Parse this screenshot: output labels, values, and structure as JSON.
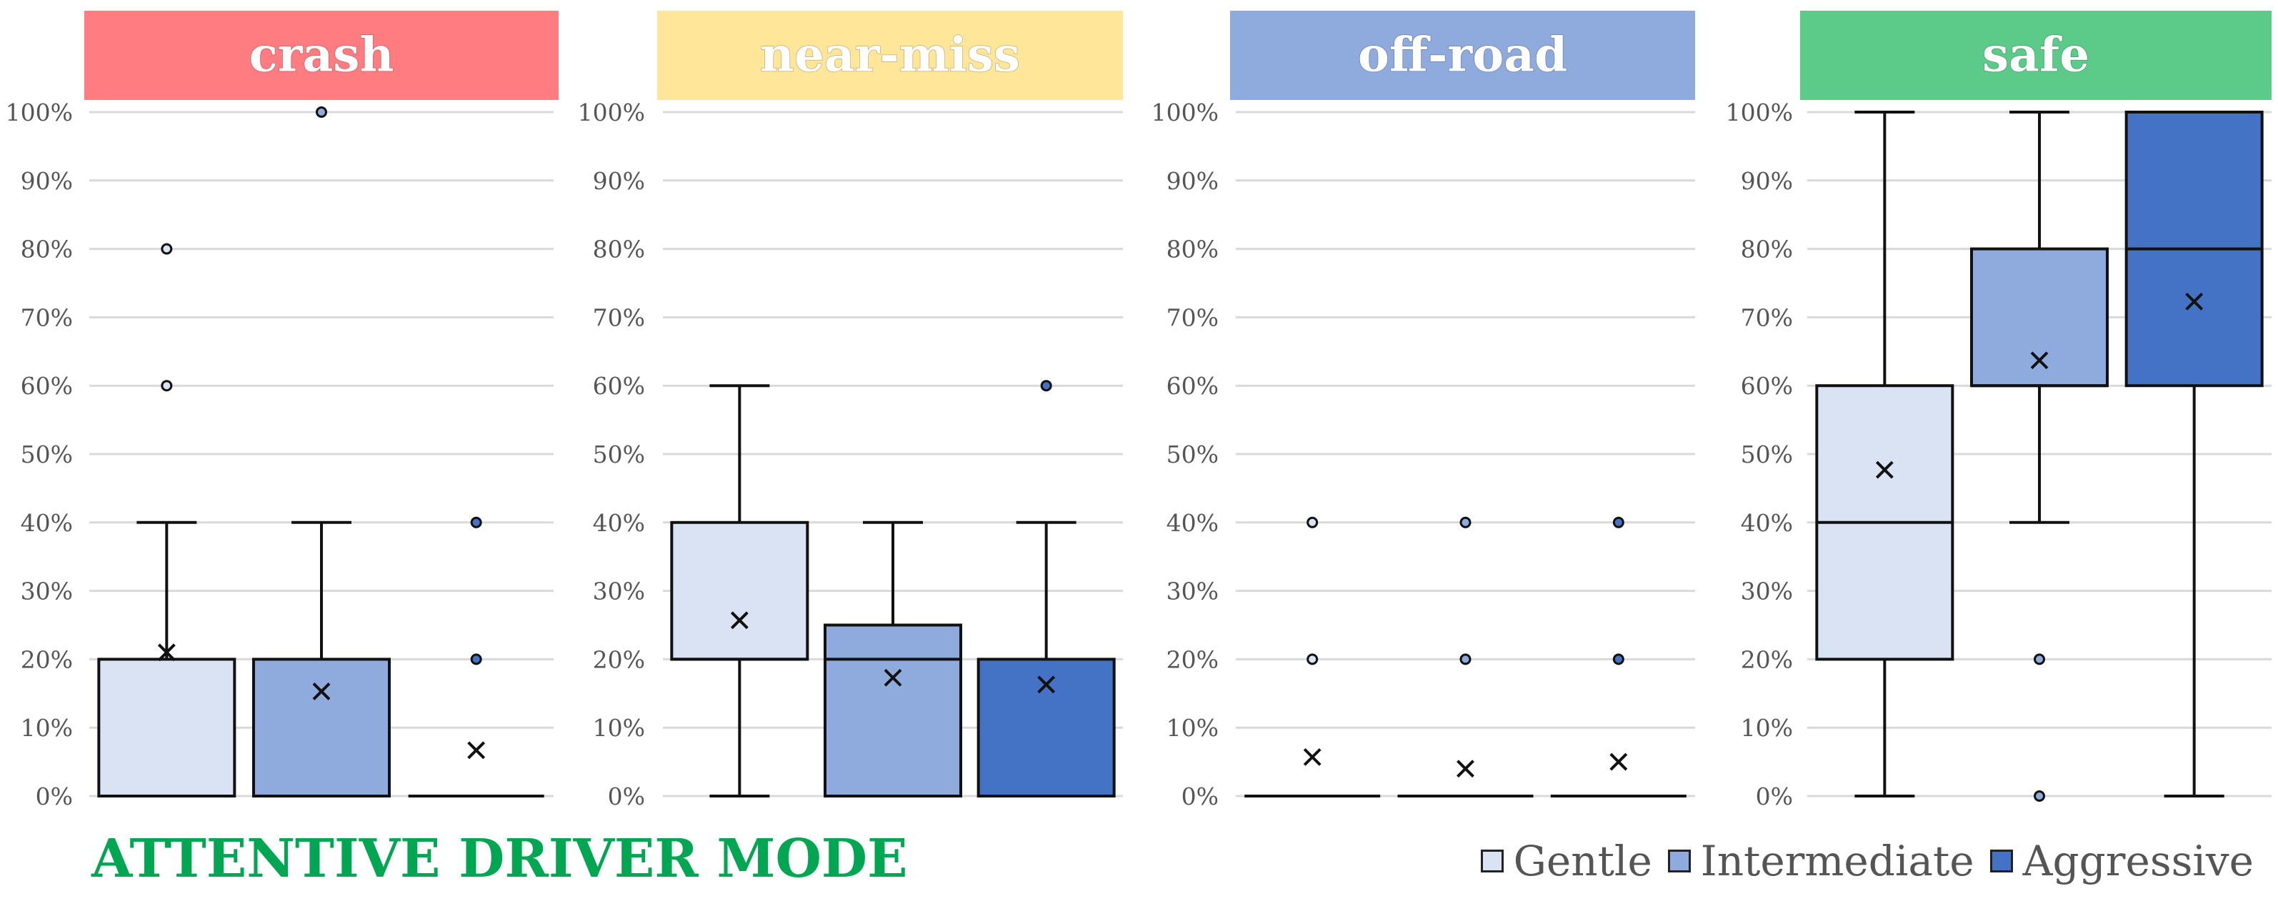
{
  "footer_title": "ATTENTIVE DRIVER MODE",
  "colors": {
    "Gentle": "#dae3f3",
    "Intermediate": "#8faadc",
    "Aggressive": "#4472c4",
    "crash": "#ff7c80",
    "near-miss": "#ffe699",
    "off-road": "#8faadc",
    "safe": "#5ccb8a"
  },
  "legend": [
    "Gentle",
    "Intermediate",
    "Aggressive"
  ],
  "chart_data": [
    {
      "type": "boxplot",
      "title": "crash",
      "ylim": [
        0,
        1
      ],
      "yticks": [
        "0%",
        "10%",
        "20%",
        "30%",
        "40%",
        "50%",
        "60%",
        "70%",
        "80%",
        "90%",
        "100%"
      ],
      "series": [
        {
          "name": "Gentle",
          "min": 0,
          "q1": 0,
          "median": 0,
          "q3": 0.2,
          "max": 0.4,
          "mean": 0.21,
          "outliers": [
            0.6,
            0.8
          ]
        },
        {
          "name": "Intermediate",
          "min": 0,
          "q1": 0,
          "median": 0,
          "q3": 0.2,
          "max": 0.4,
          "mean": 0.153,
          "outliers": [
            1.0
          ]
        },
        {
          "name": "Aggressive",
          "min": 0,
          "q1": 0,
          "median": 0,
          "q3": 0,
          "max": 0,
          "mean": 0.067,
          "outliers": [
            0.2,
            0.4
          ]
        }
      ]
    },
    {
      "type": "boxplot",
      "title": "near-miss",
      "ylim": [
        0,
        1
      ],
      "yticks": [
        "0%",
        "10%",
        "20%",
        "30%",
        "40%",
        "50%",
        "60%",
        "70%",
        "80%",
        "90%",
        "100%"
      ],
      "series": [
        {
          "name": "Gentle",
          "min": 0,
          "q1": 0.2,
          "median": 0.2,
          "q3": 0.4,
          "max": 0.6,
          "mean": 0.257,
          "outliers": []
        },
        {
          "name": "Intermediate",
          "min": 0,
          "q1": 0,
          "median": 0.2,
          "q3": 0.25,
          "max": 0.4,
          "mean": 0.173,
          "outliers": []
        },
        {
          "name": "Aggressive",
          "min": 0,
          "q1": 0,
          "median": 0,
          "q3": 0.2,
          "max": 0.4,
          "mean": 0.163,
          "outliers": [
            0.6
          ]
        }
      ]
    },
    {
      "type": "boxplot",
      "title": "off-road",
      "ylim": [
        0,
        1
      ],
      "yticks": [
        "0%",
        "10%",
        "20%",
        "30%",
        "40%",
        "50%",
        "60%",
        "70%",
        "80%",
        "90%",
        "100%"
      ],
      "series": [
        {
          "name": "Gentle",
          "min": 0,
          "q1": 0,
          "median": 0,
          "q3": 0,
          "max": 0,
          "mean": 0.057,
          "outliers": [
            0.2,
            0.4
          ]
        },
        {
          "name": "Intermediate",
          "min": 0,
          "q1": 0,
          "median": 0,
          "q3": 0,
          "max": 0,
          "mean": 0.04,
          "outliers": [
            0.2,
            0.4
          ]
        },
        {
          "name": "Aggressive",
          "min": 0,
          "q1": 0,
          "median": 0,
          "q3": 0,
          "max": 0,
          "mean": 0.05,
          "outliers": [
            0.2,
            0.4
          ]
        }
      ]
    },
    {
      "type": "boxplot",
      "title": "safe",
      "ylim": [
        0,
        1
      ],
      "yticks": [
        "0%",
        "10%",
        "20%",
        "30%",
        "40%",
        "50%",
        "60%",
        "70%",
        "80%",
        "90%",
        "100%"
      ],
      "series": [
        {
          "name": "Gentle",
          "min": 0,
          "q1": 0.2,
          "median": 0.4,
          "q3": 0.6,
          "max": 1.0,
          "mean": 0.477,
          "outliers": []
        },
        {
          "name": "Intermediate",
          "min": 0.4,
          "q1": 0.6,
          "median": 0.6,
          "q3": 0.8,
          "max": 1.0,
          "mean": 0.637,
          "outliers": [
            0,
            0.2
          ]
        },
        {
          "name": "Aggressive",
          "min": 0,
          "q1": 0.6,
          "median": 0.8,
          "q3": 1.0,
          "max": 1.0,
          "mean": 0.723,
          "outliers": []
        }
      ]
    }
  ]
}
